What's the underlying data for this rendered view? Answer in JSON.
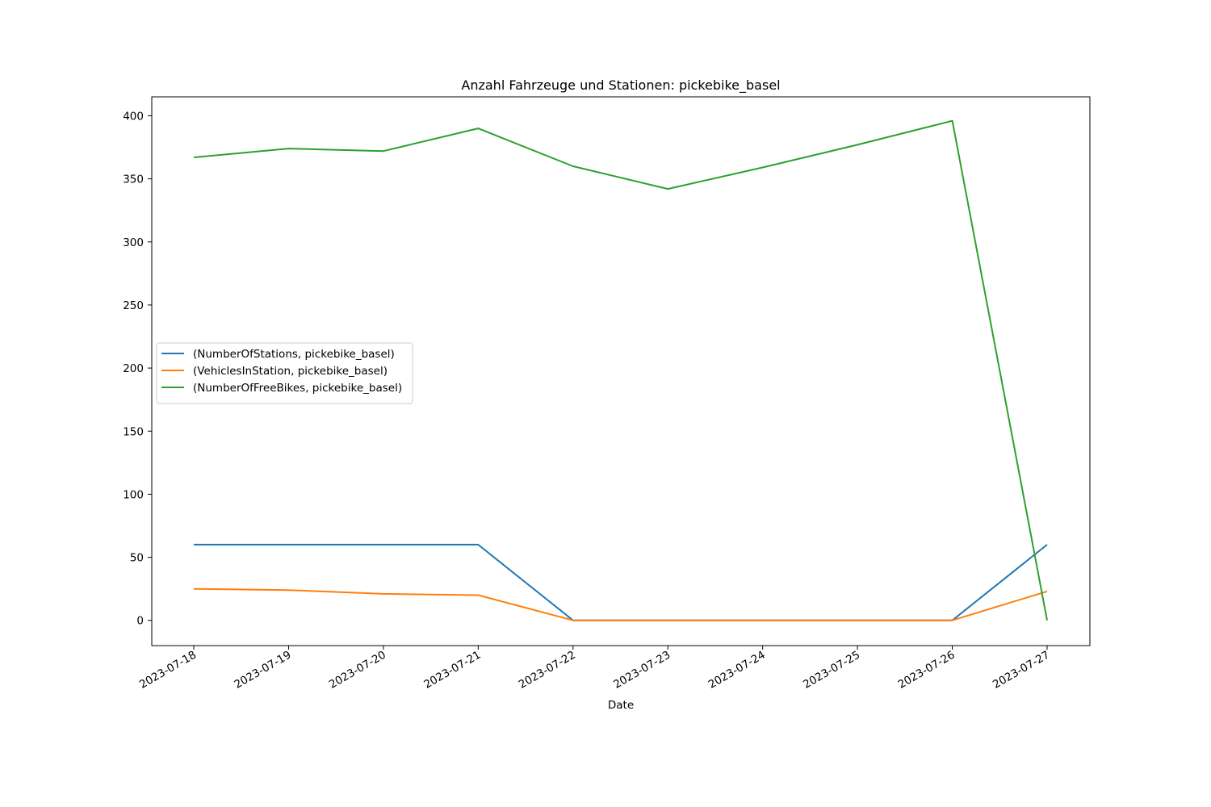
{
  "chart_data": {
    "type": "line",
    "title": "Anzahl Fahrzeuge und Stationen: pickebike_basel",
    "xlabel": "Date",
    "ylabel": "",
    "x": [
      "2023-07-18",
      "2023-07-19",
      "2023-07-20",
      "2023-07-21",
      "2023-07-22",
      "2023-07-23",
      "2023-07-24",
      "2023-07-25",
      "2023-07-26",
      "2023-07-27"
    ],
    "ylim": [
      -20,
      415
    ],
    "yticks": [
      0,
      50,
      100,
      150,
      200,
      250,
      300,
      350,
      400
    ],
    "grid": false,
    "legend_position": "center-left",
    "series": [
      {
        "name": "(NumberOfStations, pickebike_basel)",
        "color": "#1f77b4",
        "values": [
          60,
          60,
          60,
          60,
          0,
          0,
          0,
          0,
          0,
          60
        ]
      },
      {
        "name": "(VehiclesInStation, pickebike_basel)",
        "color": "#ff7f0e",
        "values": [
          25,
          24,
          21,
          20,
          0,
          0,
          0,
          0,
          0,
          23
        ]
      },
      {
        "name": "(NumberOfFreeBikes, pickebike_basel)",
        "color": "#2ca02c",
        "values": [
          367,
          374,
          372,
          390,
          360,
          342,
          359,
          377,
          396,
          0
        ]
      }
    ]
  }
}
